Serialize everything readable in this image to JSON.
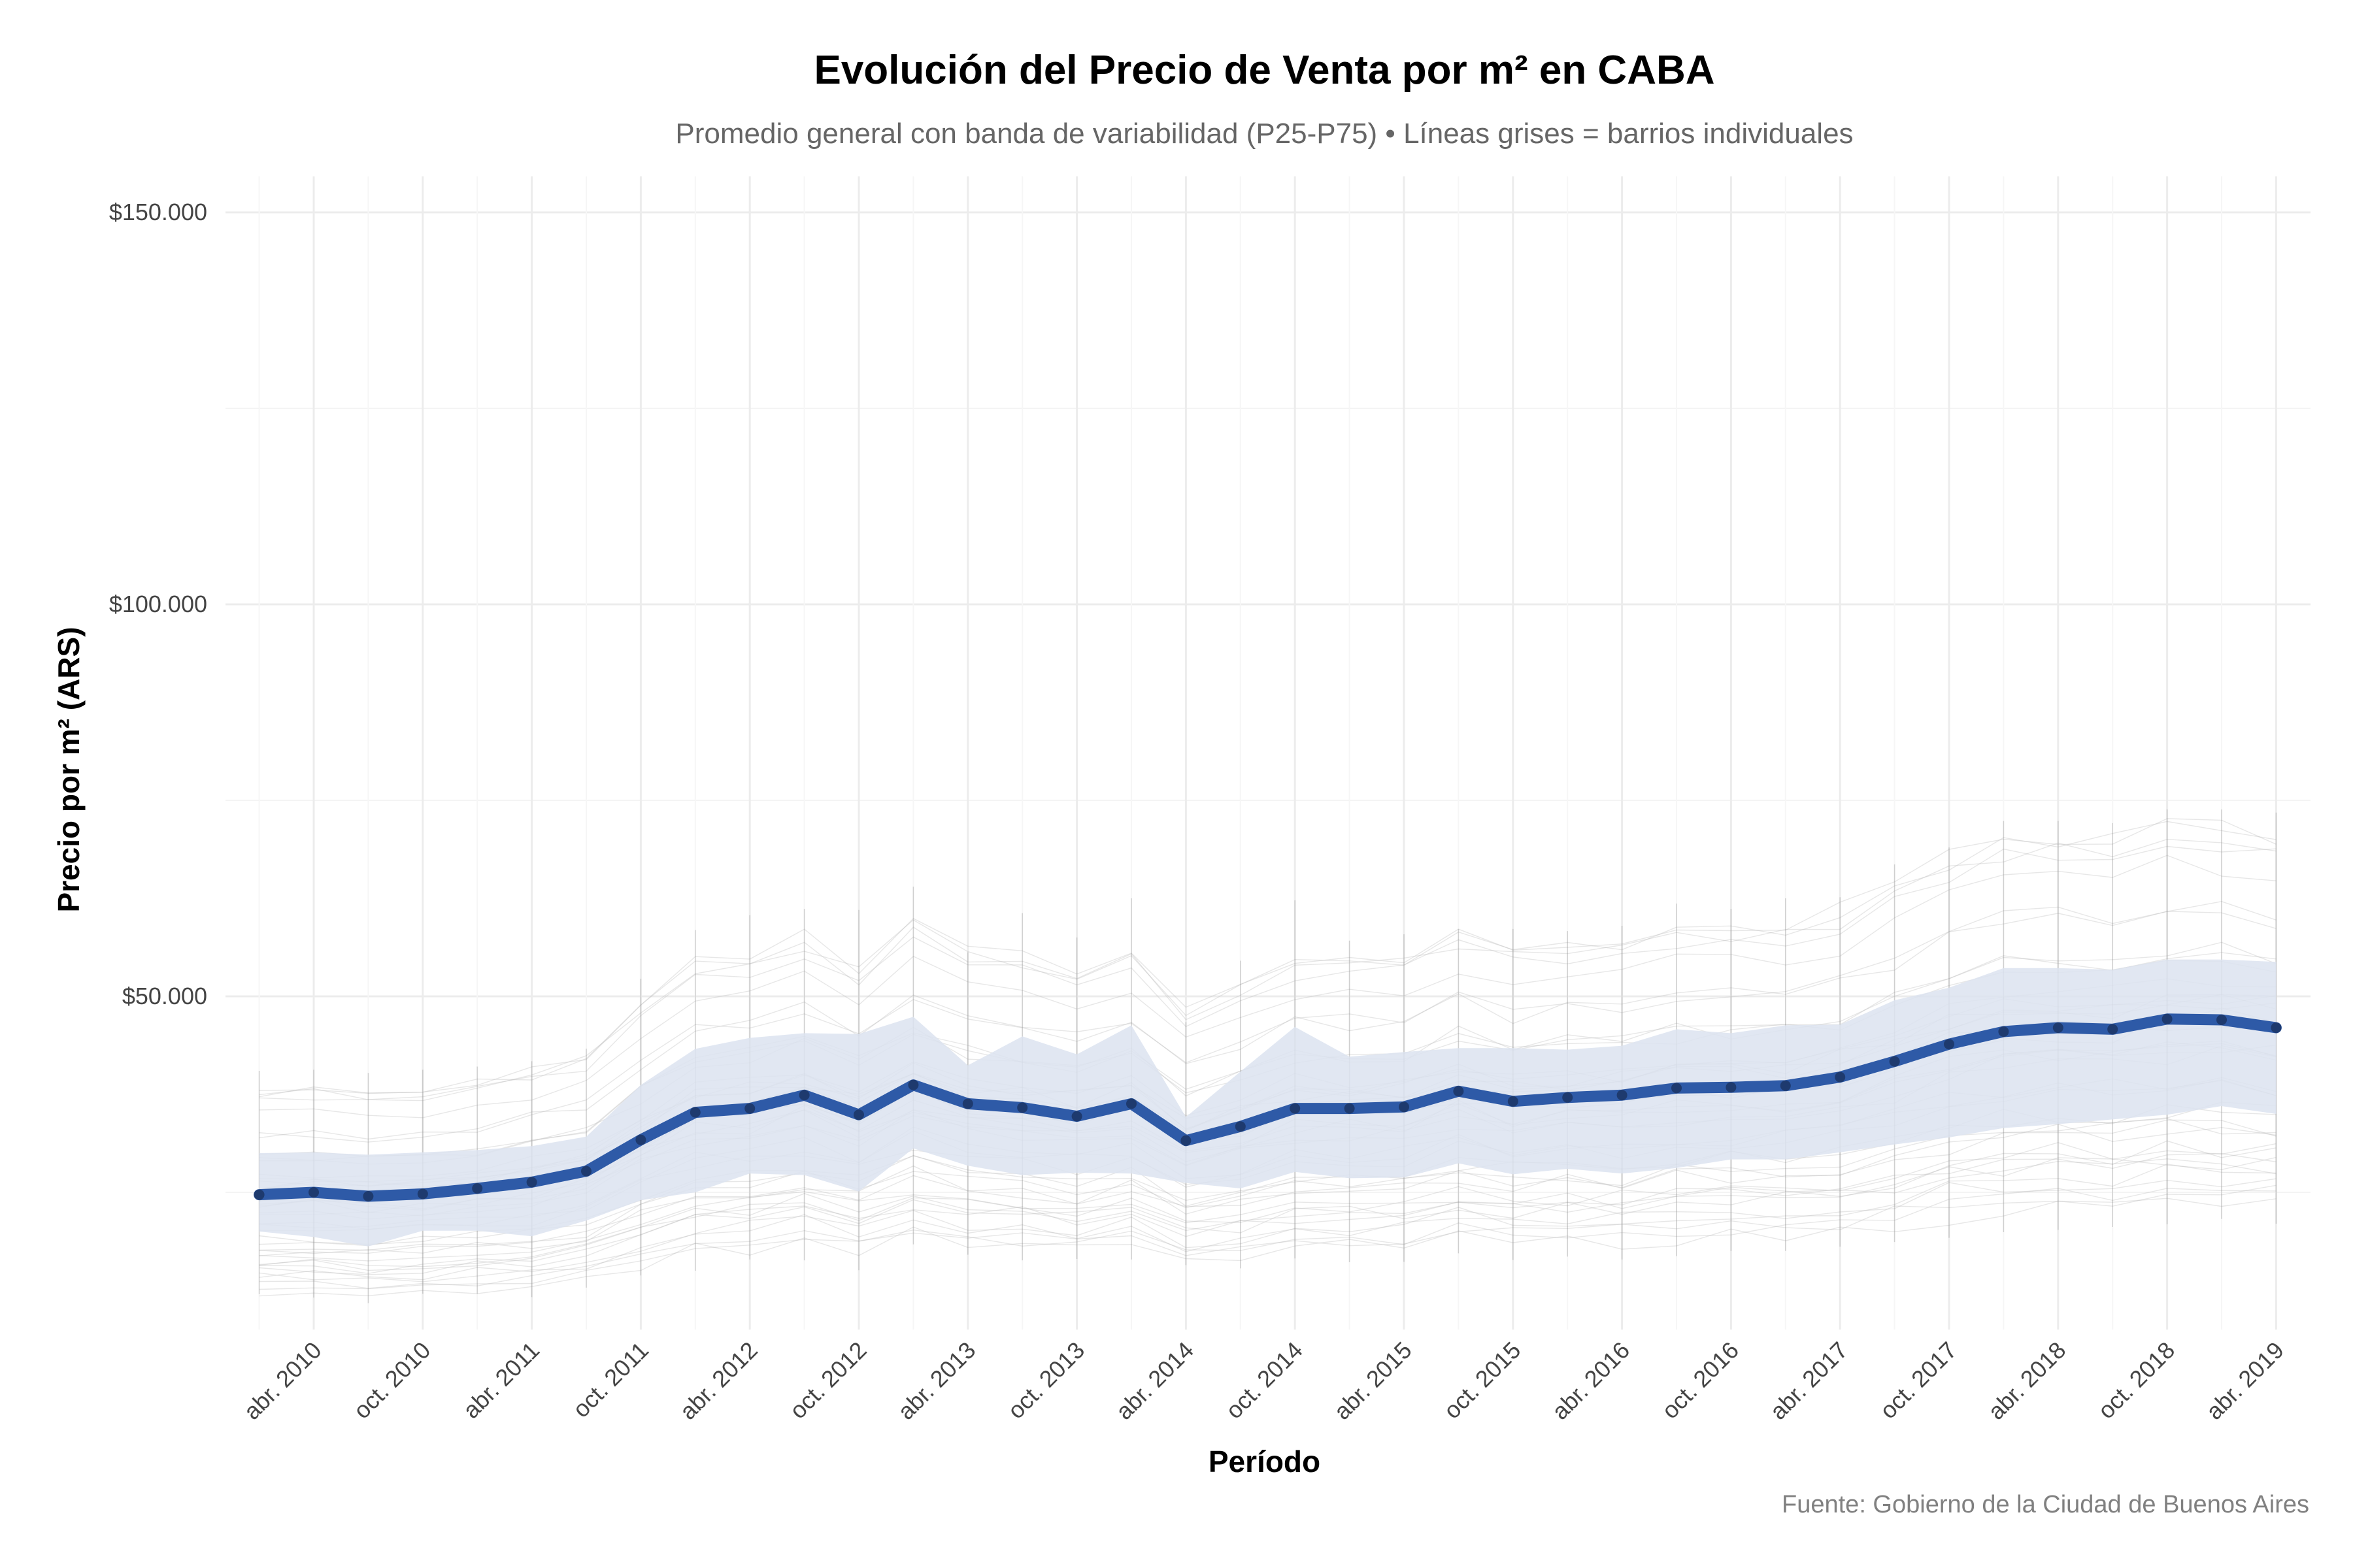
{
  "chart_data": {
    "type": "line",
    "title": "Evolución del Precio de Venta por m² en CABA",
    "subtitle": "Promedio general con banda de variabilidad (P25-P75) • Líneas grises = barrios individuales",
    "xlabel": "Período",
    "ylabel": "Precio por m² (ARS)",
    "caption": "Fuente: Gobierno de la Ciudad de Buenos Aires",
    "ylim": [
      7000,
      152000
    ],
    "y_ticks": [
      50000,
      100000,
      150000
    ],
    "y_tick_labels": [
      "$50.000",
      "$100.000",
      "$150.000"
    ],
    "x_ticks": [
      "2010-04",
      "2010-10",
      "2011-04",
      "2011-10",
      "2012-04",
      "2012-10",
      "2013-04",
      "2013-10",
      "2014-04",
      "2014-10",
      "2015-04",
      "2015-10",
      "2016-04",
      "2016-10",
      "2017-04",
      "2017-10",
      "2018-04",
      "2018-10",
      "2019-04"
    ],
    "x_tick_labels": [
      "abr. 2010",
      "oct. 2010",
      "abr. 2011",
      "oct. 2011",
      "abr. 2012",
      "oct. 2012",
      "abr. 2013",
      "oct. 2013",
      "abr. 2014",
      "oct. 2014",
      "abr. 2015",
      "oct. 2015",
      "abr. 2016",
      "oct. 2016",
      "abr. 2017",
      "oct. 2017",
      "abr. 2018",
      "oct. 2018",
      "abr. 2019"
    ],
    "x": [
      "2010-01",
      "2010-04",
      "2010-07",
      "2010-10",
      "2011-01",
      "2011-04",
      "2011-07",
      "2011-10",
      "2012-01",
      "2012-04",
      "2012-07",
      "2012-10",
      "2013-01",
      "2013-04",
      "2013-07",
      "2013-10",
      "2014-01",
      "2014-04",
      "2014-07",
      "2014-10",
      "2015-01",
      "2015-04",
      "2015-07",
      "2015-10",
      "2016-01",
      "2016-04",
      "2016-07",
      "2016-10",
      "2017-01",
      "2017-04",
      "2017-07",
      "2017-10",
      "2018-01",
      "2018-04",
      "2018-07",
      "2018-10",
      "2019-01",
      "2019-04"
    ],
    "mean": [
      24700,
      25000,
      24500,
      24800,
      25500,
      26300,
      27700,
      31700,
      35200,
      35700,
      37400,
      34900,
      38700,
      36300,
      35800,
      34700,
      36300,
      31600,
      33400,
      35700,
      35700,
      35900,
      37900,
      36600,
      37100,
      37400,
      38300,
      38400,
      38600,
      39700,
      41700,
      43900,
      45500,
      46000,
      45800,
      47100,
      47000,
      46000
    ],
    "p25": [
      20000,
      19300,
      18100,
      20100,
      20100,
      19400,
      21400,
      24000,
      25000,
      27400,
      27200,
      25100,
      30600,
      28400,
      27200,
      27500,
      27400,
      26200,
      25500,
      27600,
      26800,
      26900,
      28700,
      27300,
      28000,
      27400,
      28100,
      29200,
      29200,
      30100,
      31100,
      32000,
      33200,
      33700,
      34300,
      34900,
      36000,
      35000
    ],
    "p75": [
      30000,
      30100,
      29800,
      30100,
      30400,
      30900,
      32100,
      38700,
      43300,
      44700,
      45300,
      45200,
      47400,
      41200,
      44900,
      42600,
      46300,
      34600,
      40400,
      46100,
      42300,
      42900,
      43400,
      43400,
      43200,
      43700,
      45800,
      45300,
      46300,
      46400,
      49500,
      51100,
      53600,
      53600,
      53400,
      54700,
      54700,
      54400
    ],
    "colors": {
      "mean_line": "#2e5aa7",
      "mean_point": "#1e3a6e",
      "band": "#dce3f0",
      "barrios": "#bbbbbb",
      "grid": "#ececec"
    },
    "grid": true,
    "legend": "none",
    "barrios_lines": "many thin gray lines, one per neighbourhood"
  }
}
